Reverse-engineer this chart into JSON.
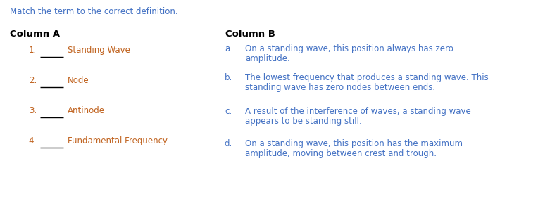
{
  "bg_color": "#ffffff",
  "instruction_text": "Match the term to the correct definition.",
  "instruction_color": "#4472c4",
  "instruction_fontsize": 8.5,
  "col_a_header": "Column A",
  "col_b_header": "Column B",
  "header_color": "#000000",
  "header_fontsize": 9.5,
  "col_a_items": [
    {
      "num": "1.",
      "term": "Standing Wave"
    },
    {
      "num": "2.",
      "term": "Node"
    },
    {
      "num": "3.",
      "term": "Antinode"
    },
    {
      "num": "4.",
      "term": "Fundamental Frequency"
    }
  ],
  "col_a_color": "#c0621e",
  "col_a_fontsize": 8.5,
  "col_b_items": [
    {
      "letter": "a.",
      "line1": "On a standing wave, this position always has zero",
      "line2": "amplitude."
    },
    {
      "letter": "b.",
      "line1": "The lowest frequency that produces a standing wave. This",
      "line2": "standing wave has zero nodes between ends."
    },
    {
      "letter": "c.",
      "line1": "A result of the interference of waves, a standing wave",
      "line2": "appears to be standing still."
    },
    {
      "letter": "d.",
      "line1": "On a standing wave, this position has the maximum",
      "line2": "amplitude, moving between crest and trough."
    }
  ],
  "col_b_color": "#4472c4",
  "col_b_fontsize": 8.5,
  "line_color": "#000000",
  "figwidth": 7.64,
  "figheight": 3.13,
  "dpi": 100
}
